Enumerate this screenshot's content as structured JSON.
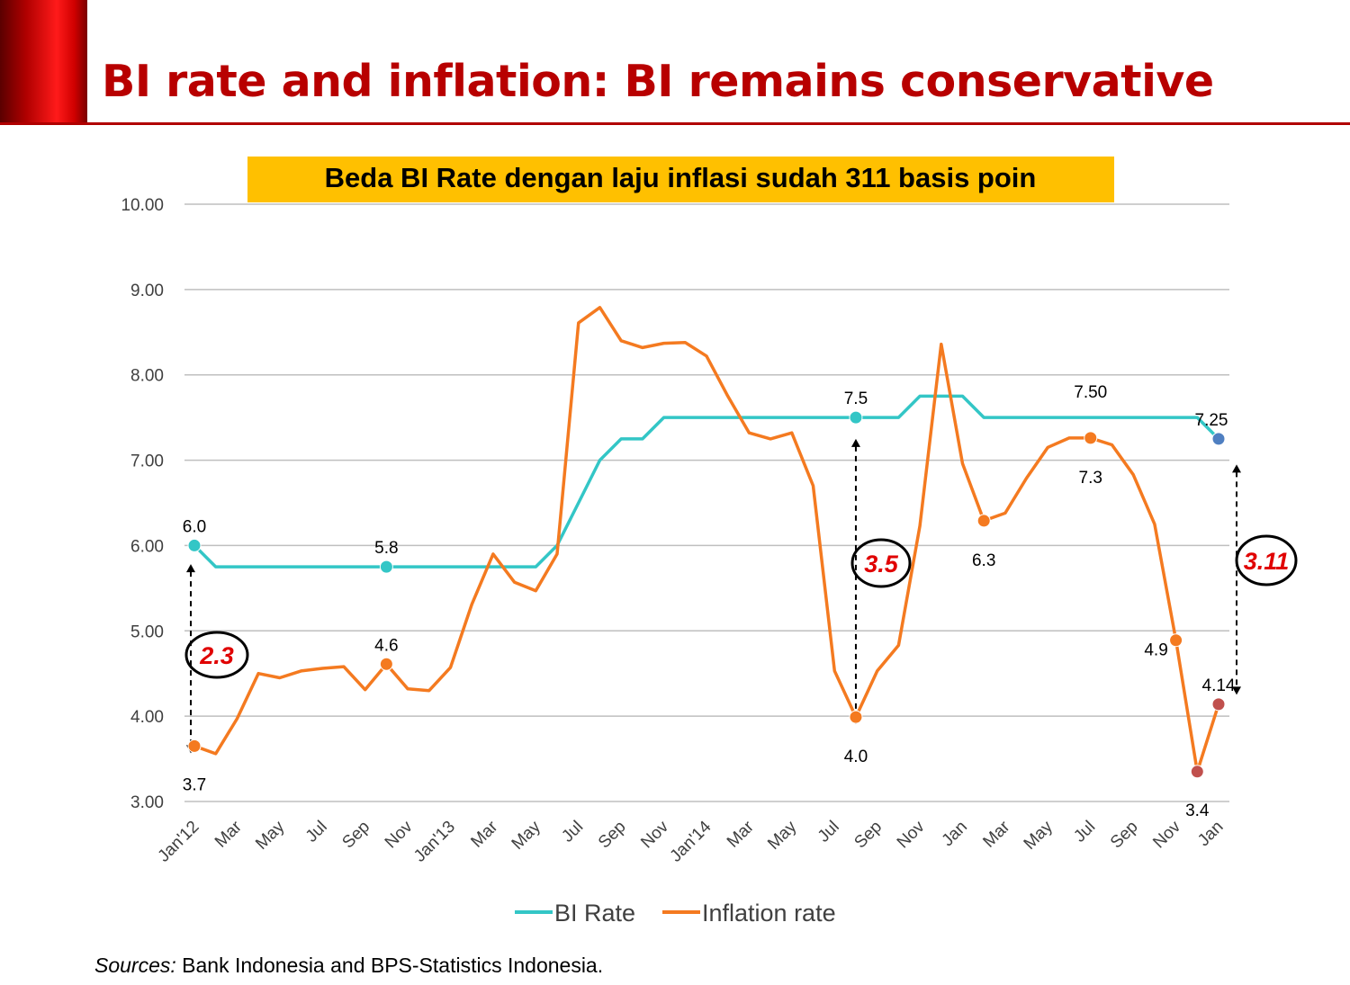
{
  "page": {
    "title": "BI rate and inflation: BI remains conservative",
    "source_label": "Sources:",
    "source_text": " Bank Indonesia and BPS-Statistics Indonesia."
  },
  "colors": {
    "bi_rate": "#33C6C6",
    "inflation": "#F47A20",
    "callout_bg": "#FFC000",
    "title_red": "#B80000",
    "gap_text": "#E00000",
    "marker_blue": "#4F7FC1",
    "marker_dark_red": "#C0504D"
  },
  "chart_data": {
    "type": "line",
    "callout": "Beda BI Rate dengan laju inflasi sudah 311 basis poin",
    "ylim": [
      3,
      10
    ],
    "y_ticks": [
      "10.00",
      "9.00",
      "8.00",
      "7.00",
      "6.00",
      "5.00",
      "4.00",
      "3.00"
    ],
    "grid": "horizontal",
    "legend_position": "bottom-center",
    "x_tick_labels": [
      "Jan'12",
      "Mar",
      "May",
      "Jul",
      "Sep",
      "Nov",
      "Jan'13",
      "Mar",
      "May",
      "Jul",
      "Sep",
      "Nov",
      "Jan'14",
      "Mar",
      "May",
      "Jul",
      "Sep",
      "Nov",
      "Jan",
      "Mar",
      "May",
      "Jul",
      "Sep",
      "Nov",
      "Jan"
    ],
    "x_tick_months": [
      0,
      2,
      4,
      6,
      8,
      10,
      12,
      14,
      16,
      18,
      20,
      22,
      24,
      26,
      28,
      30,
      32,
      34,
      36,
      38,
      40,
      42,
      44,
      46,
      48
    ],
    "series": [
      {
        "name": "BI Rate",
        "values": [
          6.0,
          5.75,
          5.75,
          5.75,
          5.75,
          5.75,
          5.75,
          5.75,
          5.75,
          5.75,
          5.75,
          5.75,
          5.75,
          5.75,
          5.75,
          5.75,
          5.75,
          6.0,
          6.5,
          7.0,
          7.25,
          7.25,
          7.5,
          7.5,
          7.5,
          7.5,
          7.5,
          7.5,
          7.5,
          7.5,
          7.5,
          7.5,
          7.5,
          7.5,
          7.75,
          7.75,
          7.75,
          7.5,
          7.5,
          7.5,
          7.5,
          7.5,
          7.5,
          7.5,
          7.5,
          7.5,
          7.5,
          7.5,
          7.25
        ]
      },
      {
        "name": "Inflation rate",
        "values": [
          3.65,
          3.56,
          3.97,
          4.5,
          4.45,
          4.53,
          4.56,
          4.58,
          4.31,
          4.61,
          4.32,
          4.3,
          4.57,
          5.31,
          5.9,
          5.57,
          5.47,
          5.9,
          8.61,
          8.79,
          8.4,
          8.32,
          8.37,
          8.38,
          8.22,
          7.75,
          7.32,
          7.25,
          7.32,
          6.7,
          4.53,
          3.99,
          4.53,
          4.83,
          6.23,
          8.36,
          6.96,
          6.29,
          6.38,
          6.79,
          7.15,
          7.26,
          7.26,
          7.18,
          6.83,
          6.25,
          4.89,
          3.35,
          4.14
        ]
      }
    ],
    "point_labels": [
      {
        "series": 0,
        "index": 0,
        "text": "6.0"
      },
      {
        "series": 0,
        "index": 9,
        "text": "5.8"
      },
      {
        "series": 0,
        "index": 31,
        "text": "7.5"
      },
      {
        "series": 0,
        "index": 48,
        "text": "7.25"
      },
      {
        "series": 1,
        "index": 0,
        "text": "3.7"
      },
      {
        "series": 1,
        "index": 9,
        "text": "4.6"
      },
      {
        "series": 1,
        "index": 31,
        "text": "4.0"
      },
      {
        "series": 1,
        "index": 37,
        "text": "6.3"
      },
      {
        "series": 1,
        "index": 42,
        "text": "7.3"
      },
      {
        "series": 1,
        "index": 46,
        "text": "4.9"
      },
      {
        "series": 1,
        "index": 47,
        "text": "3.4"
      },
      {
        "series": 1,
        "index": 48,
        "text": "4.14"
      }
    ],
    "extra_labels": [
      {
        "month": 42,
        "text": "7.50"
      }
    ],
    "gap_annotations": [
      {
        "text": "2.3",
        "month": 0
      },
      {
        "text": "3.5",
        "month": 31
      },
      {
        "text": "3.11",
        "month": 48
      }
    ]
  }
}
